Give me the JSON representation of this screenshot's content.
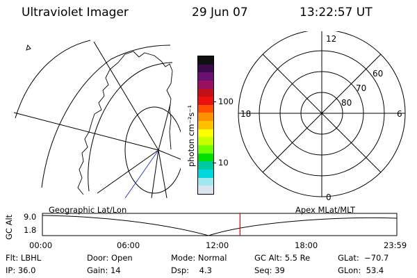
{
  "header": {
    "instrument": "Ultraviolet Imager",
    "date": "29 Jun 07",
    "time": "13:22:57 UT"
  },
  "colorbar": {
    "unit_label": "photon cm⁻²s⁻¹",
    "tick_labels": [
      "100",
      "10"
    ],
    "colors": [
      "#101010",
      "#3a0a4a",
      "#6a1070",
      "#9a1060",
      "#c01018",
      "#ea1010",
      "#ff5000",
      "#ff9000",
      "#ffc000",
      "#ffff00",
      "#c8ff00",
      "#70ff00",
      "#00e000",
      "#00c8a0",
      "#00d8e0",
      "#a0e8f0",
      "#d8e4f0"
    ]
  },
  "polar_plot": {
    "mlt_labels": {
      "top": "12",
      "left": "18",
      "right": "6",
      "bottom": "0"
    },
    "lat_labels": [
      "60",
      "70",
      "80"
    ]
  },
  "timeline": {
    "left_title": "Geographic Lat/Lon",
    "right_title": "Apex MLat/MLT",
    "yaxis_label": "GC Alt",
    "y_top": "9.0",
    "y_bottom": "1.8",
    "time_ticks": [
      "00:00",
      "06:00",
      "12:00",
      "18:00",
      "23:59"
    ],
    "current_time_hours": 13.38,
    "marker_color": "#e00000"
  },
  "info": {
    "flt": "Flt: LBHL",
    "ip": "IP: 36.0",
    "door": "Door: Open",
    "gain": "Gain: 14",
    "mode": "Mode: Normal",
    "dsp": "Dsp:    4.3",
    "gc_alt": "GC Alt: 5.5 Re",
    "seq": "Seq: 39",
    "glat": "GLat:  −70.7",
    "glon": "GLon:  53.4"
  }
}
